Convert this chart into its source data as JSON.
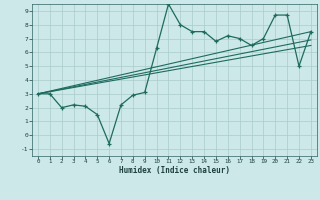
{
  "xlabel": "Humidex (Indice chaleur)",
  "bg_color": "#cce8e8",
  "grid_color": "#aacccc",
  "line_color": "#1e6b5e",
  "xlim": [
    -0.5,
    23.5
  ],
  "ylim": [
    -1.5,
    9.5
  ],
  "xticks": [
    0,
    1,
    2,
    3,
    4,
    5,
    6,
    7,
    8,
    9,
    10,
    11,
    12,
    13,
    14,
    15,
    16,
    17,
    18,
    19,
    20,
    21,
    22,
    23
  ],
  "yticks": [
    -1,
    0,
    1,
    2,
    3,
    4,
    5,
    6,
    7,
    8,
    9
  ],
  "main_x": [
    0,
    1,
    2,
    3,
    4,
    5,
    6,
    7,
    8,
    9,
    10,
    11,
    12,
    13,
    14,
    15,
    16,
    17,
    18,
    19,
    20,
    21,
    22,
    23
  ],
  "main_y": [
    3.0,
    3.0,
    2.0,
    2.2,
    2.1,
    1.5,
    -0.6,
    2.2,
    2.9,
    3.1,
    6.3,
    9.5,
    8.0,
    7.5,
    7.5,
    6.8,
    7.2,
    7.0,
    6.5,
    7.0,
    8.7,
    8.7,
    5.0,
    7.5
  ],
  "trend1_x": [
    0,
    23
  ],
  "trend1_y": [
    3.0,
    7.5
  ],
  "trend2_x": [
    0,
    23
  ],
  "trend2_y": [
    3.0,
    6.9
  ],
  "trend3_x": [
    0,
    23
  ],
  "trend3_y": [
    3.0,
    6.5
  ]
}
